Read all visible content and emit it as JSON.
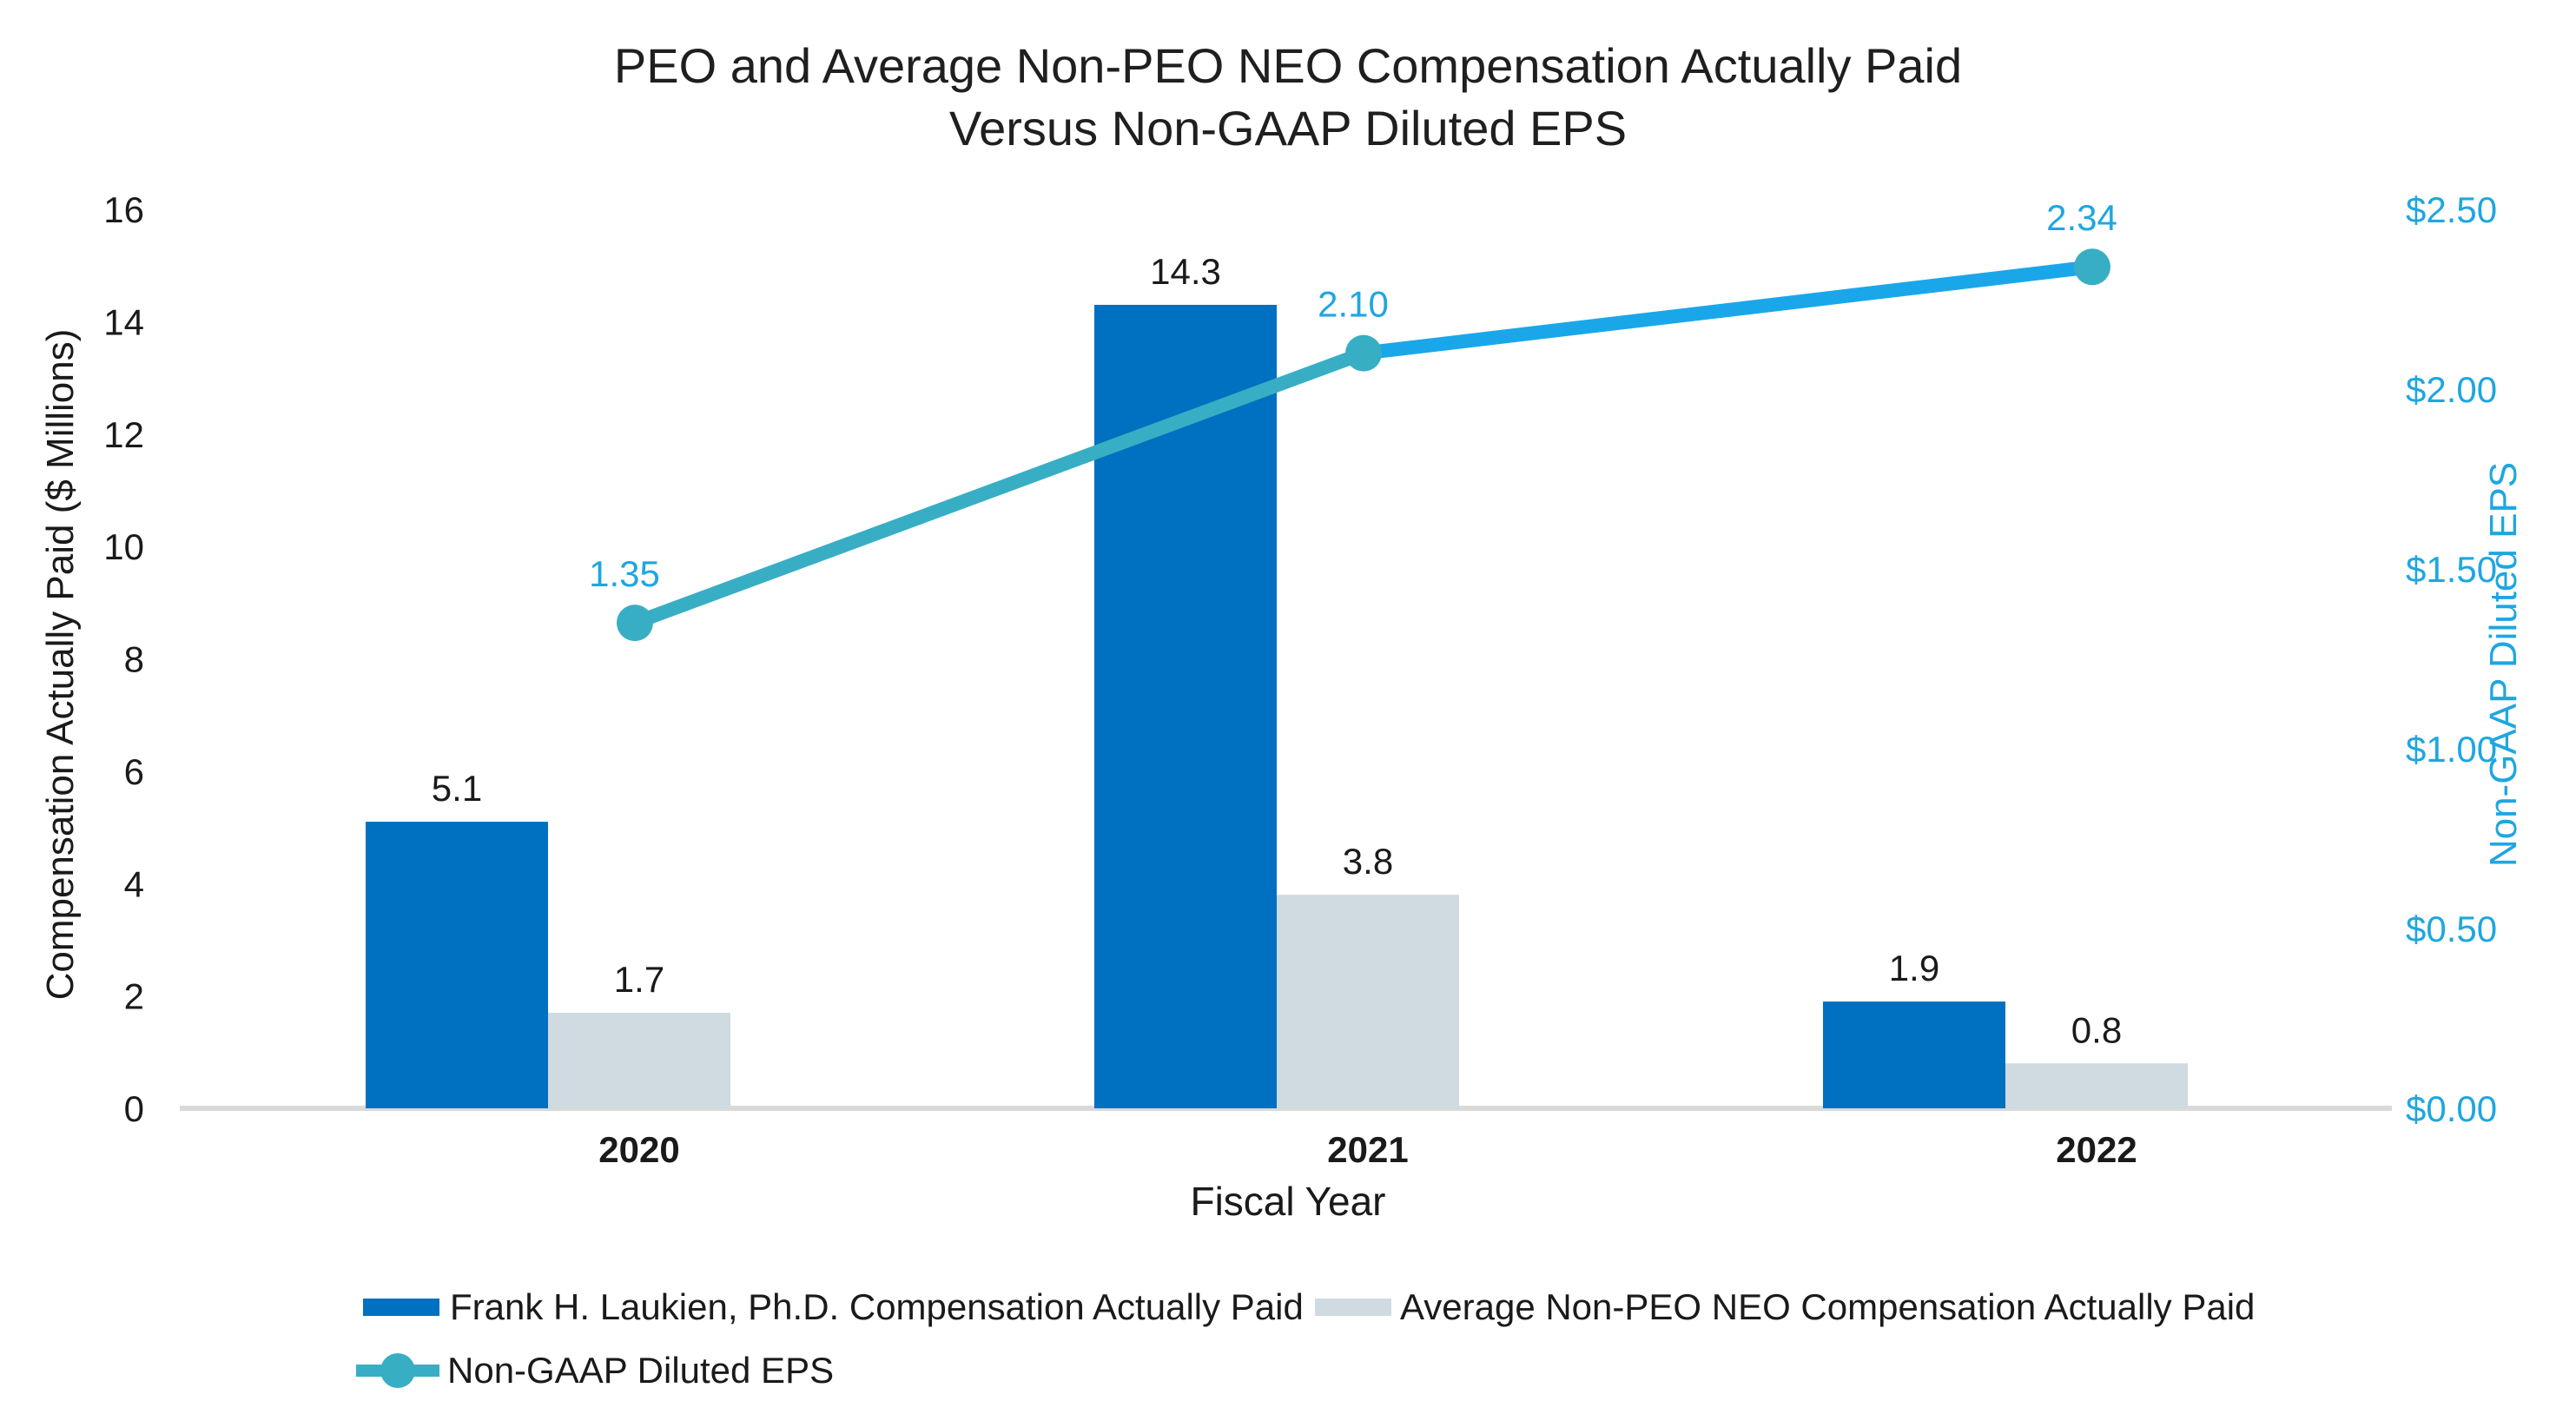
{
  "title": {
    "line1": "PEO and Average Non-PEO NEO Compensation Actually Paid",
    "line2": "Versus Non-GAAP Diluted EPS"
  },
  "axes": {
    "left": {
      "title": "Compensation Actually Paid ($ Millions)",
      "ticks": [
        "0",
        "2",
        "4",
        "6",
        "8",
        "10",
        "12",
        "14",
        "16"
      ]
    },
    "right": {
      "title": "Non-GAAP Diluted EPS",
      "ticks": [
        "$0.00",
        "$0.50",
        "$1.00",
        "$1.50",
        "$2.00",
        "$2.50"
      ]
    },
    "x": {
      "title": "Fiscal Year",
      "categories": [
        "2020",
        "2021",
        "2022"
      ]
    }
  },
  "chart_data": {
    "type": "combo",
    "categories": [
      "2020",
      "2021",
      "2022"
    ],
    "series": [
      {
        "name": "Frank H. Laukien, Ph.D. Compensation Actually Paid",
        "type": "bar",
        "axis": "left",
        "color": "#0070C0",
        "values": [
          5.1,
          14.3,
          1.9
        ],
        "labels": [
          "5.1",
          "14.3",
          "1.9"
        ]
      },
      {
        "name": "Average Non-PEO NEO Compensation Actually Paid",
        "type": "bar",
        "axis": "left",
        "color": "#CFDAE1",
        "values": [
          1.7,
          3.8,
          0.8
        ],
        "labels": [
          "1.7",
          "3.8",
          "0.8"
        ]
      },
      {
        "name": "Non-GAAP Diluted EPS",
        "type": "line",
        "axis": "right",
        "segment_colors": [
          "#38AEC4",
          "#1AA7EA"
        ],
        "marker_color": "#38AEC4",
        "label_color": "#1FA6E1",
        "values": [
          1.35,
          2.1,
          2.34
        ],
        "labels": [
          "1.35",
          "2.10",
          "2.34"
        ]
      }
    ],
    "title": "PEO and Average Non-PEO NEO Compensation Actually Paid Versus Non-GAAP Diluted EPS",
    "xlabel": "Fiscal Year",
    "ylabel_left": "Compensation Actually Paid ($ Millions)",
    "ylabel_right": "Non-GAAP Diluted EPS",
    "ylim_left": [
      0,
      16
    ],
    "ylim_right": [
      0,
      2.5
    ],
    "grid": false,
    "legend_position": "bottom-left"
  },
  "legend": {
    "items": [
      {
        "label": "Frank H. Laukien, Ph.D. Compensation Actually Paid",
        "swatch": "bar-blue-swatch"
      },
      {
        "label": "Average Non-PEO NEO Compensation Actually Paid",
        "swatch": "bar-gray-swatch"
      },
      {
        "label": "Non-GAAP Diluted EPS",
        "swatch": "line-marker-swatch"
      }
    ]
  },
  "colors": {
    "bar_blue": "#0070C0",
    "bar_gray": "#CFDAE1",
    "line_teal": "#38AEC4",
    "line_sky": "#1AA7EA",
    "eps_text": "#1FA6E1",
    "axis_line": "#D9D9D9",
    "text": "#1A1A1A"
  }
}
